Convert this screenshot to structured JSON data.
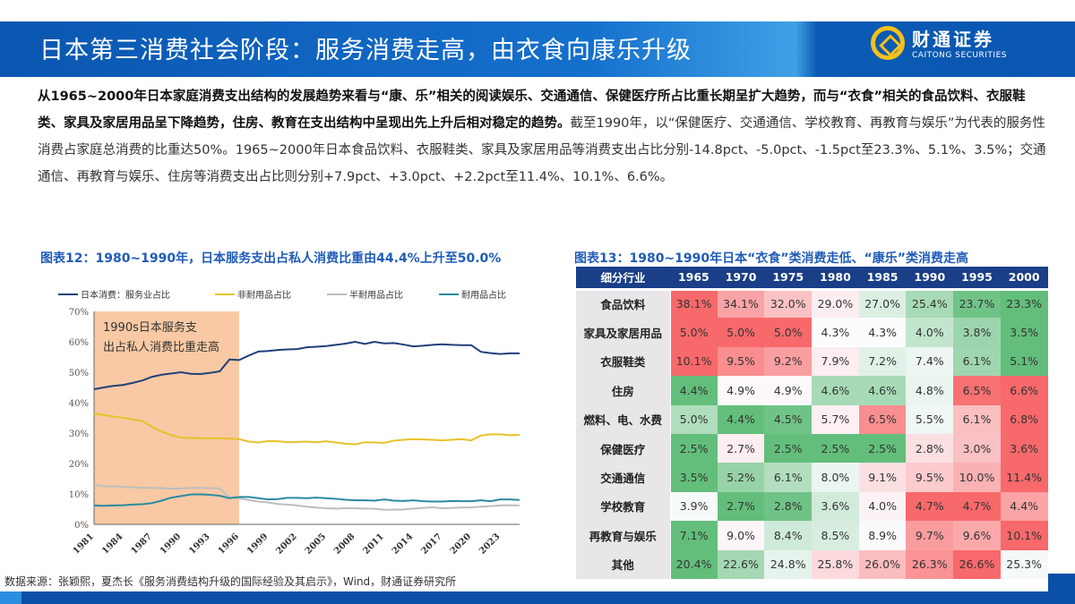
{
  "header": {
    "title": "日本第三消费社会阶段：服务消费走高，由衣食向康乐升级",
    "logo_cn": "财通证券",
    "logo_en": "CAITONG SECURITIES"
  },
  "body": {
    "bold": "从1965~2000年日本家庭消费支出结构的发展趋势来看与“康、乐”相关的阅读娱乐、交通通信、保健医疗所占比重长期呈扩大趋势，而与“衣食”相关的食品饮料、衣服鞋类、家具及家居用品呈下降趋势，住房、教育在支出结构中呈现出先上升后相对稳定的趋势。",
    "normal": "截至1990年，以“保健医疗、交通通信、学校教育、再教育与娱乐”为代表的服务性消费占家庭总消费的比重达50%。1965~2000年日本食品饮料、衣服鞋类、家具及家居用品等消费支出占比分别-14.8pct、-5.0pct、-1.5pct至23.3%、5.1%、3.5%；交通通信、再教育与娱乐、住房等消费支出占比则分别+7.9pct、+3.0pct、+2.2pct至11.4%、10.1%、6.6%。"
  },
  "chart12": {
    "caption": "图表12：1980~1990年，日本服务支出占私人消费比重由44.4%上升至50.0%"
  },
  "chart13": {
    "caption": "图表13：1980~1990年日本“衣食”类消费走低、“康乐”类消费走高"
  },
  "chart_data": [
    {
      "type": "line",
      "annotation": "1990s日本服务支出占私人消费比重走高",
      "shaded_range": [
        1981,
        1996
      ],
      "shade_color": "#f8c9a4",
      "ylim": [
        0,
        70
      ],
      "yticks": [
        "0%",
        "10%",
        "20%",
        "30%",
        "40%",
        "50%",
        "60%",
        "70%"
      ],
      "xticks": [
        "1981",
        "1984",
        "1987",
        "1990",
        "1993",
        "1996",
        "1999",
        "2002",
        "2005",
        "2008",
        "2011",
        "2014",
        "2017",
        "2020",
        "2023"
      ],
      "x": [
        1981,
        1982,
        1983,
        1984,
        1985,
        1986,
        1987,
        1988,
        1989,
        1990,
        1991,
        1992,
        1993,
        1994,
        1995,
        1996,
        1997,
        1998,
        1999,
        2000,
        2001,
        2002,
        2003,
        2004,
        2005,
        2006,
        2007,
        2008,
        2009,
        2010,
        2011,
        2012,
        2013,
        2014,
        2015,
        2016,
        2017,
        2018,
        2019,
        2020,
        2021,
        2022,
        2023,
        2024,
        2025
      ],
      "legend": "top",
      "series": [
        {
          "name": "日本消费：服务业占比",
          "color": "#1f3f7a",
          "values": [
            44.4,
            45,
            45.5,
            45.8,
            46.5,
            47.3,
            48.5,
            49.2,
            49.6,
            50,
            49.5,
            49.4,
            49.8,
            50.3,
            54.2,
            54,
            55.5,
            56.8,
            57,
            57.3,
            57.5,
            57.6,
            58.2,
            58.4,
            58.6,
            59,
            59.4,
            60,
            59.3,
            60,
            59.5,
            59.6,
            59.1,
            58.5,
            58.7,
            59,
            59.2,
            59,
            58.9,
            58.9,
            56.7,
            56.3,
            56,
            56.2,
            56.2
          ]
        },
        {
          "name": "非耐用品占比",
          "color": "#e8c12a",
          "values": [
            36.3,
            36,
            35.4,
            35,
            34.5,
            34,
            32,
            30.5,
            29.3,
            28.5,
            28.4,
            28.3,
            28.3,
            28.3,
            28.2,
            28,
            27.2,
            26.9,
            27.4,
            27.3,
            27,
            27.1,
            27.2,
            27,
            27.3,
            26.9,
            26.5,
            26.3,
            27,
            26.9,
            26.8,
            27.5,
            27.8,
            28,
            27.9,
            27.8,
            27.6,
            27.8,
            28,
            27.6,
            29.2,
            29.6,
            29.6,
            29.3,
            29.4
          ]
        },
        {
          "name": "半耐用品占比",
          "color": "#bdbdbd",
          "values": [
            13,
            12.5,
            12.5,
            12.3,
            12.2,
            12,
            12,
            11.9,
            11.7,
            11.8,
            12,
            12,
            11.9,
            11.8,
            8.8,
            8.6,
            8,
            7.5,
            7.2,
            6.7,
            6.5,
            6.2,
            5.8,
            5.5,
            5.3,
            5.2,
            5.3,
            5.3,
            5.2,
            5.1,
            4.8,
            4.8,
            4.9,
            5.2,
            5.4,
            5.6,
            5.3,
            5.4,
            5.5,
            5.6,
            5.8,
            6,
            6.2,
            6.3,
            6.2
          ]
        },
        {
          "name": "耐用品占比",
          "color": "#2a8aa0",
          "values": [
            6.2,
            6.1,
            6.2,
            6.3,
            6.5,
            6.6,
            7,
            7.8,
            8.8,
            9.3,
            9.8,
            9.9,
            9.7,
            9.4,
            8.6,
            9,
            9,
            8.6,
            8.2,
            8.3,
            8.7,
            8.7,
            8.6,
            8.8,
            8.6,
            8.4,
            8.1,
            7.9,
            7.9,
            7.8,
            8.2,
            7.8,
            7.7,
            7.9,
            7.6,
            7.5,
            7.5,
            7.7,
            7.6,
            7.6,
            7.9,
            7.6,
            8.2,
            8.2,
            8
          ]
        }
      ]
    },
    {
      "type": "table",
      "header": [
        "细分行业",
        "1965",
        "1970",
        "1975",
        "1980",
        "1985",
        "1990",
        "1995",
        "2000"
      ],
      "scale_colors": {
        "high": "#f8696b",
        "mid": "#fcfcff",
        "low": "#63be7b"
      },
      "rows": [
        {
          "label": "食品饮料",
          "values": [
            38.1,
            34.1,
            32.0,
            29.0,
            27.0,
            25.4,
            23.7,
            23.3
          ]
        },
        {
          "label": "家具及家居用品",
          "values": [
            5.0,
            5.0,
            5.0,
            4.3,
            4.3,
            4.0,
            3.8,
            3.5
          ]
        },
        {
          "label": "衣服鞋类",
          "values": [
            10.1,
            9.5,
            9.2,
            7.9,
            7.2,
            7.4,
            6.1,
            5.1
          ]
        },
        {
          "label": "住房",
          "values": [
            4.4,
            4.9,
            4.9,
            4.6,
            4.6,
            4.8,
            6.5,
            6.6
          ]
        },
        {
          "label": "燃料、电、水费",
          "values": [
            5.0,
            4.4,
            4.5,
            5.7,
            6.5,
            5.5,
            6.1,
            6.8
          ]
        },
        {
          "label": "保健医疗",
          "values": [
            2.5,
            2.7,
            2.5,
            2.5,
            2.5,
            2.8,
            3.0,
            3.6
          ]
        },
        {
          "label": "交通通信",
          "values": [
            3.5,
            5.2,
            6.1,
            8.0,
            9.1,
            9.5,
            10.0,
            11.4
          ]
        },
        {
          "label": "学校教育",
          "values": [
            3.9,
            2.7,
            2.8,
            3.6,
            4.0,
            4.7,
            4.7,
            4.4
          ]
        },
        {
          "label": "再教育与娱乐",
          "values": [
            7.1,
            9.0,
            8.4,
            8.5,
            8.9,
            9.7,
            9.6,
            10.1
          ]
        },
        {
          "label": "其他",
          "values": [
            20.4,
            22.6,
            24.8,
            25.8,
            26.0,
            26.3,
            26.6,
            25.3
          ]
        }
      ]
    }
  ],
  "source": "数据来源：张颖熙，夏杰长《服务消费结构升级的国际经验及其启示》，Wind，财通证券研究所"
}
